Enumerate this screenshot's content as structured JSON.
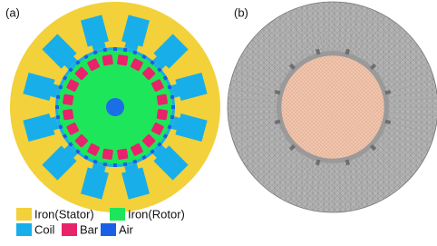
{
  "panels": [
    {
      "label": "(a)"
    },
    {
      "label": "(b)"
    }
  ],
  "legend": [
    {
      "label": "Iron(Stator)"
    },
    {
      "label": "Iron(Rotor)"
    },
    {
      "label": "Coil"
    },
    {
      "label": "Bar"
    },
    {
      "label": "Air"
    }
  ]
}
